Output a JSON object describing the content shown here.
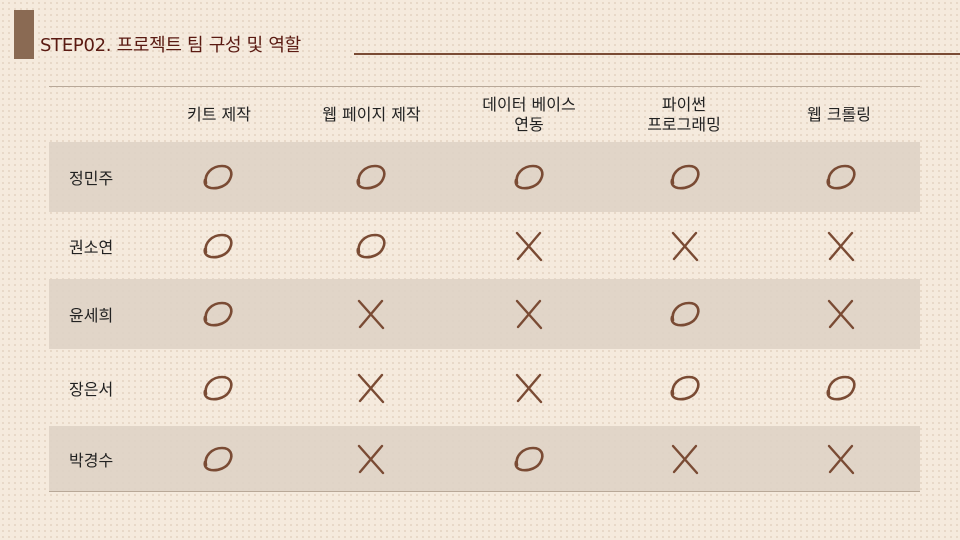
{
  "title": "STEP02. 프로젝트 팀 구성 및 역할",
  "colors": {
    "accent_bar": "#8a6a53",
    "title_text": "#5a1a12",
    "mark": "#7a4b34"
  },
  "table": {
    "columns": [
      "키트 제작",
      "웹 페이지 제작",
      "데이터 베이스\n연동",
      "파이썬\n프로그래밍",
      "웹 크롤링"
    ],
    "rows": [
      {
        "name": "정민주",
        "marks": [
          "O",
          "O",
          "O",
          "O",
          "O"
        ]
      },
      {
        "name": "권소연",
        "marks": [
          "O",
          "O",
          "X",
          "X",
          "X"
        ]
      },
      {
        "name": "윤세희",
        "marks": [
          "O",
          "X",
          "X",
          "O",
          "X"
        ]
      },
      {
        "name": "장은서",
        "marks": [
          "O",
          "X",
          "X",
          "O",
          "O"
        ]
      },
      {
        "name": "박경수",
        "marks": [
          "O",
          "X",
          "O",
          "X",
          "X"
        ]
      }
    ]
  }
}
